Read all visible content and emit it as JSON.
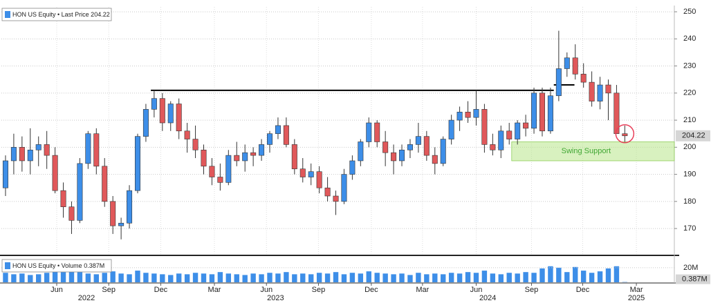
{
  "chart_data": [
    {
      "type": "candlestick",
      "legend": "HON US Equity • Last Price 204.22",
      "up_color": "#3d8ee8",
      "down_color": "#e0585a",
      "legend_color": "#3d8ee8",
      "xlim": [
        -0.5,
        81
      ],
      "ylim": [
        160.6,
        251.8
      ],
      "yticks": [
        170,
        180,
        190,
        200,
        210,
        220,
        230,
        240,
        250
      ],
      "xticks": [
        {
          "value": 6.2,
          "label": "Jun"
        },
        {
          "value": 12.5,
          "label": "Sep"
        },
        {
          "value": 18.8,
          "label": "Dec"
        },
        {
          "value": 25.3,
          "label": "Mar"
        },
        {
          "value": 31.6,
          "label": "Jun"
        },
        {
          "value": 37.9,
          "label": "Sep"
        },
        {
          "value": 44.3,
          "label": "Dec"
        },
        {
          "value": 50.5,
          "label": "Mar"
        },
        {
          "value": 57.0,
          "label": "Jun"
        },
        {
          "value": 63.7,
          "label": "Sep"
        },
        {
          "value": 69.9,
          "label": "Dec"
        },
        {
          "value": 76.4,
          "label": "Mar"
        }
      ],
      "year_ticks": [
        {
          "value": 9.8,
          "label": "2022"
        },
        {
          "value": 32.7,
          "label": "2023"
        },
        {
          "value": 58.4,
          "label": "2024"
        },
        {
          "value": 76.4,
          "label": "2025"
        }
      ],
      "grid": true,
      "price_marker": "204.22",
      "ohlc": [
        [
          185,
          197,
          182,
          195
        ],
        [
          195,
          205,
          190,
          200
        ],
        [
          200,
          204,
          191,
          195
        ],
        [
          195,
          207,
          190,
          199
        ],
        [
          199,
          204,
          193,
          201
        ],
        [
          201,
          206,
          192,
          197
        ],
        [
          197,
          200,
          183,
          184
        ],
        [
          184,
          187,
          174,
          178
        ],
        [
          178,
          180,
          168,
          173
        ],
        [
          173,
          196,
          172,
          194
        ],
        [
          194,
          206,
          192,
          205
        ],
        [
          205,
          207,
          190,
          193
        ],
        [
          193,
          196,
          178,
          180
        ],
        [
          180,
          182,
          168,
          171
        ],
        [
          171,
          174,
          166,
          172
        ],
        [
          172,
          186,
          170,
          184
        ],
        [
          184,
          205,
          183,
          204
        ],
        [
          204,
          216,
          202,
          214
        ],
        [
          214,
          221,
          211,
          218
        ],
        [
          218,
          220,
          206,
          209
        ],
        [
          209,
          217,
          206,
          216
        ],
        [
          216,
          218,
          203,
          206
        ],
        [
          206,
          209,
          198,
          203
        ],
        [
          203,
          208,
          196,
          199
        ],
        [
          199,
          201,
          190,
          193
        ],
        [
          193,
          196,
          186,
          189
        ],
        [
          189,
          194,
          184,
          187
        ],
        [
          187,
          199,
          186,
          197
        ],
        [
          197,
          202,
          193,
          195
        ],
        [
          195,
          201,
          191,
          198
        ],
        [
          198,
          200,
          193,
          197
        ],
        [
          197,
          203,
          195,
          201
        ],
        [
          201,
          206,
          198,
          205
        ],
        [
          205,
          211,
          203,
          208
        ],
        [
          208,
          211,
          200,
          201
        ],
        [
          201,
          203,
          190,
          192
        ],
        [
          192,
          196,
          187,
          189
        ],
        [
          189,
          194,
          186,
          191
        ],
        [
          191,
          193,
          183,
          185
        ],
        [
          185,
          189,
          180,
          182
        ],
        [
          182,
          184,
          175,
          180
        ],
        [
          180,
          192,
          179,
          190
        ],
        [
          190,
          197,
          188,
          195
        ],
        [
          195,
          203,
          193,
          202
        ],
        [
          202,
          211,
          200,
          209
        ],
        [
          209,
          210,
          200,
          202
        ],
        [
          202,
          206,
          193,
          198
        ],
        [
          198,
          201,
          190,
          195
        ],
        [
          195,
          201,
          193,
          199
        ],
        [
          199,
          203,
          196,
          201
        ],
        [
          201,
          209,
          198,
          204
        ],
        [
          204,
          206,
          195,
          197
        ],
        [
          197,
          200,
          190,
          194
        ],
        [
          194,
          204,
          193,
          203
        ],
        [
          203,
          212,
          201,
          210
        ],
        [
          210,
          215,
          206,
          213
        ],
        [
          213,
          217,
          209,
          211
        ],
        [
          211,
          221,
          208,
          214
        ],
        [
          214,
          216,
          198,
          201
        ],
        [
          201,
          205,
          197,
          199
        ],
        [
          199,
          208,
          196,
          206
        ],
        [
          206,
          209,
          201,
          203
        ],
        [
          203,
          210,
          201,
          209
        ],
        [
          209,
          212,
          204,
          207
        ],
        [
          207,
          222,
          205,
          220
        ],
        [
          220,
          222,
          204,
          206
        ],
        [
          206,
          222,
          205,
          219
        ],
        [
          219,
          243,
          217,
          229
        ],
        [
          229,
          235,
          226,
          233
        ],
        [
          233,
          238,
          225,
          227
        ],
        [
          227,
          231,
          222,
          224
        ],
        [
          224,
          228,
          215,
          217
        ],
        [
          217,
          226,
          214,
          223
        ],
        [
          223,
          225,
          210,
          220
        ],
        [
          220,
          223,
          205,
          205
        ],
        [
          205,
          208,
          202,
          204.22
        ]
      ],
      "lines": [
        {
          "y": 221,
          "x": [
            17.6,
            66.4
          ]
        },
        {
          "y": 223,
          "x": [
            66.4,
            68.9
          ]
        }
      ],
      "support_zone": {
        "label": "Swing Support",
        "ylim": [
          195,
          202
        ],
        "xlim": [
          61.3,
          81
        ],
        "color": "#b8e68a"
      }
    },
    {
      "type": "bar",
      "legend": "HON US Equity • Volume 0.387M",
      "color": "#3d8ee8",
      "ylim": [
        0,
        35
      ],
      "yticks": [
        {
          "value": 20,
          "label": "20M"
        }
      ],
      "marker": "0.387M",
      "values": [
        13,
        11,
        12,
        10,
        11,
        13,
        15,
        14,
        16,
        14,
        12,
        11,
        13,
        15,
        12,
        11,
        16,
        13,
        12,
        11,
        10,
        12,
        11,
        13,
        12,
        11,
        14,
        12,
        11,
        10,
        12,
        11,
        13,
        12,
        14,
        11,
        12,
        11,
        13,
        12,
        14,
        11,
        13,
        12,
        15,
        13,
        12,
        11,
        12,
        10,
        13,
        11,
        12,
        11,
        13,
        12,
        14,
        13,
        16,
        12,
        11,
        13,
        12,
        14,
        13,
        19,
        22,
        20,
        14,
        21,
        16,
        13,
        15,
        19,
        22,
        0.387
      ]
    }
  ]
}
